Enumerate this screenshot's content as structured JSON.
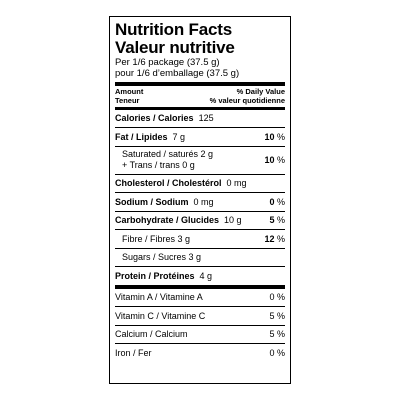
{
  "title_en": "Nutrition Facts",
  "title_fr": "Valeur nutritive",
  "serving_en": "Per 1/6 package (37.5 g)",
  "serving_fr": "pour 1/6 d’emballage (37.5 g)",
  "header": {
    "amount_en": "Amount",
    "amount_fr": "Teneur",
    "dv_en": "% Daily Value",
    "dv_fr": "% valeur quotidienne"
  },
  "calories": {
    "label": "Calories / Calories",
    "value": "125"
  },
  "fat": {
    "label": "Fat / Lipides",
    "value": "7 g",
    "pct": "10",
    "unit": "%"
  },
  "sat_trans": {
    "line1": "Saturated / saturés 2 g",
    "line2": "+ Trans / trans 0 g",
    "pct": "10",
    "unit": "%"
  },
  "cholesterol": {
    "label": "Cholesterol / Cholestérol",
    "value": "0 mg"
  },
  "sodium": {
    "label": "Sodium / Sodium",
    "value": "0 mg",
    "pct": "0",
    "unit": "%"
  },
  "carbs": {
    "label": "Carbohydrate / Glucides",
    "value": "10 g",
    "pct": "5",
    "unit": "%"
  },
  "fibre": {
    "label": "Fibre / Fibres 3 g",
    "pct": "12",
    "unit": "%"
  },
  "sugars": {
    "label": "Sugars / Sucres 3 g"
  },
  "protein": {
    "label": "Protein / Protéines",
    "value": "4 g"
  },
  "vitamins": [
    {
      "label": "Vitamin A / Vitamine A",
      "pct": "0 %"
    },
    {
      "label": "Vitamin C / Vitamine C",
      "pct": "5 %"
    },
    {
      "label": "Calcium / Calcium",
      "pct": "5 %"
    },
    {
      "label": "Iron / Fer",
      "pct": "0 %"
    }
  ]
}
